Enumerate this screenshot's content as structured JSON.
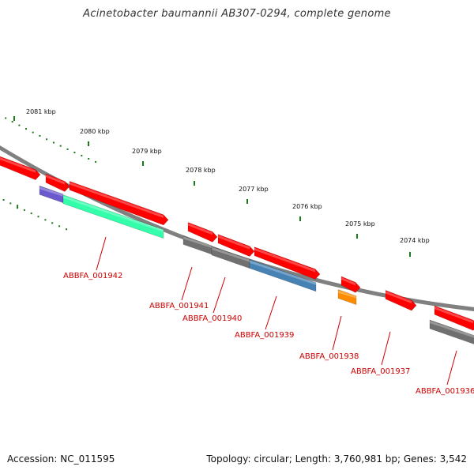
{
  "title": "Acinetobacter baumannii AB307-0294, complete genome",
  "footer": {
    "accession": "Accession: NC_011595",
    "topology": "Topology: circular; Length: 3,760,981 bp; Genes: 3,542"
  },
  "colors": {
    "backbone": "#808080",
    "tick": "#1a7a1a",
    "label_red": "#cc0000",
    "gene_red": "#ff0000",
    "gene_gray": "#707070",
    "gene_teal": "#33ffaa",
    "gene_blue": "#4682b4",
    "gene_purple": "#6a5acd",
    "gene_orange": "#ff8c00"
  },
  "scale_labels": [
    "2081 kbp",
    "2080 kbp",
    "2079 kbp",
    "2078 kbp",
    "2077 kbp",
    "2076 kbp",
    "2075 kbp",
    "2074 kbp"
  ],
  "gene_labels": [
    "ABBFA_001942",
    "ABBFA_001941",
    "ABBFA_001940",
    "ABBFA_001939",
    "ABBFA_001938",
    "ABBFA_001937",
    "ABBFA_001936"
  ]
}
